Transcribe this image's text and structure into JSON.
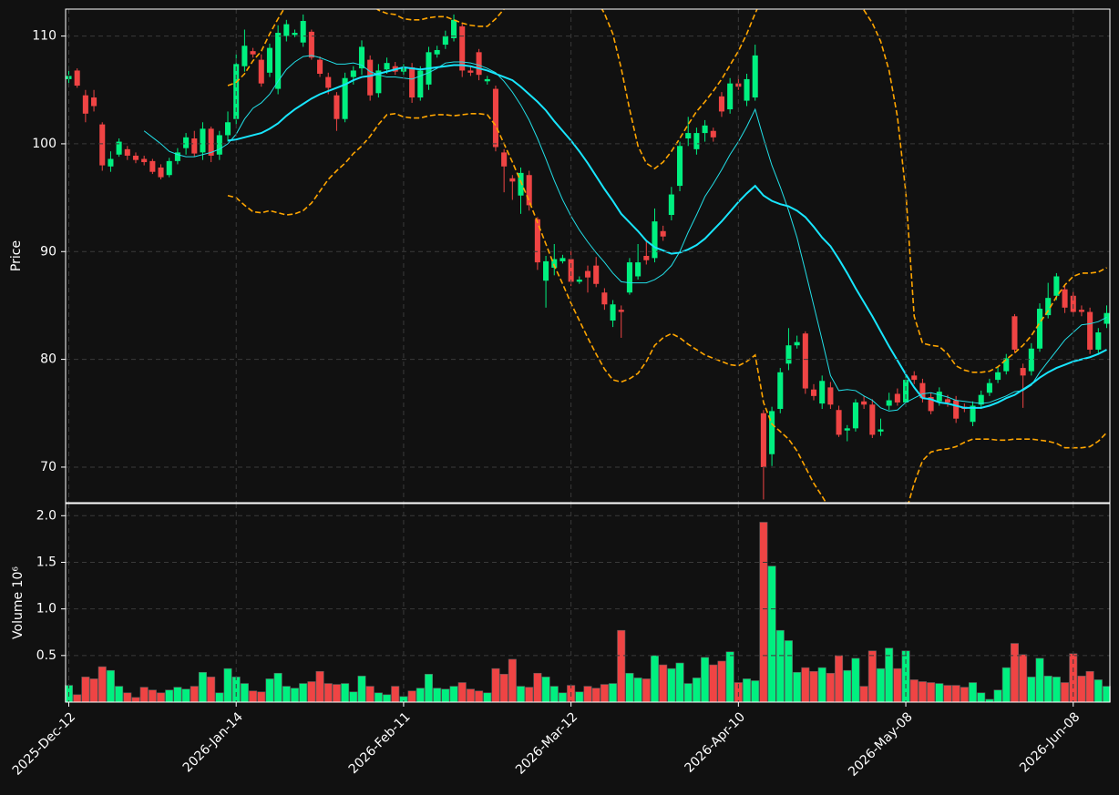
{
  "chart_data": {
    "type": "candlestick",
    "ylabel": "Price",
    "volume_label": "Volume  10⁶",
    "up_color": "#00f080",
    "down_color": "#ef4444",
    "grid": true,
    "ylim": [
      66.7,
      112.5
    ],
    "yticks": [
      70,
      80,
      90,
      100,
      110
    ],
    "volume_ylim": [
      0,
      2.13
    ],
    "volume_yticks": [
      0.5,
      {
        "value": 1,
        "label": "1.0"
      },
      1.5,
      {
        "value": 2,
        "label": "2.0"
      }
    ],
    "categories": [
      "2025-Dec-12",
      null,
      null,
      null,
      null,
      null,
      null,
      null,
      null,
      null,
      null,
      null,
      null,
      null,
      null,
      null,
      null,
      null,
      null,
      null,
      "2026-Jan-14",
      null,
      null,
      null,
      null,
      null,
      null,
      null,
      null,
      null,
      null,
      null,
      null,
      null,
      null,
      null,
      null,
      null,
      null,
      null,
      "2026-Feb-11",
      null,
      null,
      null,
      null,
      null,
      null,
      null,
      null,
      null,
      null,
      null,
      null,
      null,
      null,
      null,
      null,
      null,
      null,
      null,
      "2026-Mar-12",
      null,
      null,
      null,
      null,
      null,
      null,
      null,
      null,
      null,
      null,
      null,
      null,
      null,
      null,
      null,
      null,
      null,
      null,
      null,
      "2026-Apr-10",
      null,
      null,
      null,
      null,
      null,
      null,
      null,
      null,
      null,
      null,
      null,
      null,
      null,
      null,
      null,
      null,
      null,
      null,
      null,
      "2026-May-08",
      null,
      null,
      null,
      null,
      null,
      null,
      null,
      null,
      null,
      null,
      null,
      null,
      null,
      null,
      null,
      null,
      null,
      null,
      null,
      "2026-Jun-08",
      null,
      null,
      null,
      null
    ],
    "open": [
      106.0,
      106.8,
      104.5,
      104.3,
      101.8,
      97.9,
      99.0,
      99.5,
      98.9,
      98.6,
      98.4,
      97.8,
      97.1,
      98.4,
      99.6,
      100.5,
      99.2,
      101.4,
      99.0,
      100.8,
      102.3,
      107.2,
      108.6,
      107.8,
      106.6,
      105.1,
      110.0,
      110.1,
      109.4,
      110.4,
      107.8,
      106.2,
      104.5,
      102.3,
      106.2,
      107.0,
      107.8,
      104.7,
      106.9,
      107.2,
      106.7,
      107.1,
      104.3,
      105.5,
      108.3,
      109.2,
      109.8,
      110.9,
      106.8,
      108.5,
      105.8,
      105.1,
      99.2,
      96.8,
      95.2,
      97.1,
      93.0,
      87.3,
      88.5,
      89.1,
      89.3,
      87.2,
      88.2,
      88.7,
      86.2,
      83.6,
      84.6,
      86.2,
      87.7,
      89.6,
      89.4,
      91.9,
      93.4,
      96.1,
      100.5,
      99.5,
      101.0,
      101.2,
      104.4,
      103.2,
      105.6,
      104.0,
      104.3,
      75.0,
      71.2,
      75.4,
      79.6,
      81.3,
      82.4,
      77.2,
      75.9,
      77.4,
      75.3,
      73.4,
      73.6,
      76.1,
      75.8,
      73.3,
      75.7,
      76.8,
      76.0,
      78.5,
      77.8,
      76.5,
      76.1,
      76.3,
      76.2,
      75.6,
      74.2,
      75.8,
      76.9,
      78.1,
      78.9,
      84.0,
      79.2,
      78.9,
      81.0,
      84.1,
      85.9,
      86.5,
      85.9,
      84.6,
      84.4,
      80.9,
      83.3
    ],
    "high": [
      107.2,
      107.0,
      105.0,
      105.0,
      102.0,
      99.3,
      100.5,
      99.8,
      99.2,
      98.9,
      98.6,
      98.1,
      98.7,
      99.6,
      101.0,
      101.2,
      102.0,
      101.6,
      101.2,
      103.0,
      108.3,
      110.6,
      108.9,
      108.3,
      109.3,
      111.0,
      111.5,
      110.6,
      112.0,
      110.6,
      108.1,
      106.6,
      104.8,
      106.6,
      107.2,
      109.6,
      108.2,
      107.4,
      108.0,
      107.6,
      107.4,
      107.5,
      107.2,
      109.0,
      109.1,
      110.5,
      112.0,
      111.2,
      107.2,
      108.8,
      106.3,
      105.4,
      99.5,
      97.1,
      97.8,
      97.5,
      93.2,
      89.6,
      90.7,
      89.7,
      90.2,
      87.7,
      88.7,
      89.5,
      86.6,
      85.5,
      85.0,
      89.4,
      90.7,
      91.0,
      94.0,
      92.4,
      96.0,
      100.2,
      102.5,
      101.5,
      102.2,
      101.5,
      104.8,
      106.1,
      106.3,
      106.5,
      109.2,
      75.3,
      75.6,
      79.2,
      82.9,
      82.2,
      82.6,
      77.7,
      78.5,
      77.9,
      75.7,
      73.9,
      76.3,
      76.6,
      76.3,
      74.5,
      76.9,
      77.3,
      78.6,
      78.9,
      78.2,
      76.9,
      77.4,
      76.7,
      76.6,
      75.9,
      76.1,
      77.1,
      78.2,
      79.3,
      80.5,
      84.2,
      79.6,
      81.5,
      85.2,
      87.1,
      88.0,
      86.9,
      86.3,
      85.0,
      84.8,
      82.9,
      85.0
    ],
    "low": [
      105.5,
      105.2,
      102.0,
      103.0,
      97.5,
      97.4,
      98.8,
      98.5,
      98.2,
      98.0,
      97.2,
      96.7,
      96.9,
      98.1,
      99.0,
      98.8,
      98.5,
      98.3,
      98.5,
      100.2,
      101.8,
      106.7,
      108.0,
      105.3,
      106.2,
      104.6,
      109.5,
      109.9,
      109.0,
      107.8,
      106.2,
      104.6,
      101.2,
      102.0,
      105.5,
      106.4,
      104.0,
      104.3,
      106.5,
      106.4,
      106.4,
      103.8,
      104.0,
      105.0,
      108.0,
      108.8,
      109.5,
      106.2,
      106.3,
      105.9,
      105.5,
      99.3,
      95.5,
      94.8,
      93.5,
      93.8,
      88.3,
      84.8,
      87.8,
      88.9,
      86.8,
      87.0,
      86.2,
      86.7,
      84.6,
      83.0,
      82.0,
      86.0,
      87.4,
      88.8,
      89.0,
      91.0,
      92.9,
      95.6,
      99.8,
      99.0,
      100.2,
      100.2,
      102.5,
      102.8,
      105.0,
      103.5,
      104.0,
      67.0,
      70.1,
      75.0,
      79.0,
      81.0,
      76.8,
      76.2,
      75.4,
      75.4,
      72.8,
      72.4,
      73.3,
      75.4,
      72.7,
      72.9,
      75.3,
      75.7,
      75.6,
      77.7,
      76.0,
      74.9,
      75.7,
      75.6,
      74.1,
      75.1,
      73.8,
      75.4,
      76.6,
      77.8,
      78.6,
      80.6,
      75.5,
      78.5,
      80.7,
      83.8,
      85.5,
      84.3,
      84.0,
      84.0,
      80.5,
      80.6,
      82.9
    ],
    "close": [
      106.3,
      105.4,
      102.8,
      103.5,
      98.0,
      98.6,
      100.2,
      98.9,
      98.5,
      98.3,
      97.4,
      96.9,
      98.4,
      99.2,
      100.6,
      99.1,
      101.4,
      98.9,
      100.8,
      102.0,
      107.4,
      109.1,
      108.3,
      105.6,
      108.9,
      110.3,
      111.1,
      110.3,
      111.4,
      108.0,
      106.5,
      105.2,
      102.3,
      106.1,
      106.8,
      109.0,
      104.5,
      106.8,
      107.5,
      106.7,
      107.1,
      104.3,
      106.8,
      108.5,
      108.7,
      110.0,
      111.5,
      106.8,
      106.6,
      106.4,
      106.0,
      99.7,
      97.9,
      96.5,
      97.3,
      94.3,
      89.0,
      89.1,
      89.3,
      89.4,
      87.2,
      87.4,
      87.6,
      87.0,
      85.1,
      85.1,
      84.4,
      89.0,
      89.0,
      89.2,
      92.8,
      91.4,
      95.3,
      99.8,
      101.0,
      101.0,
      101.7,
      100.6,
      103.0,
      105.6,
      105.3,
      106.0,
      108.2,
      70.0,
      75.2,
      78.8,
      81.3,
      81.6,
      77.3,
      76.6,
      78.0,
      75.8,
      73.0,
      73.6,
      76.0,
      75.8,
      73.0,
      73.5,
      76.2,
      76.0,
      78.1,
      78.1,
      76.4,
      75.2,
      77.0,
      76.0,
      74.5,
      75.4,
      75.7,
      76.7,
      77.8,
      78.8,
      80.1,
      80.9,
      78.5,
      81.0,
      84.7,
      85.7,
      87.7,
      84.8,
      84.4,
      84.4,
      80.9,
      82.5,
      84.3
    ],
    "volume": [
      0.18,
      0.08,
      0.27,
      0.25,
      0.38,
      0.34,
      0.17,
      0.1,
      0.05,
      0.16,
      0.13,
      0.1,
      0.13,
      0.16,
      0.14,
      0.17,
      0.32,
      0.27,
      0.1,
      0.36,
      0.27,
      0.2,
      0.12,
      0.11,
      0.25,
      0.31,
      0.17,
      0.15,
      0.2,
      0.22,
      0.33,
      0.2,
      0.19,
      0.2,
      0.11,
      0.28,
      0.17,
      0.1,
      0.08,
      0.17,
      0.06,
      0.12,
      0.15,
      0.3,
      0.15,
      0.14,
      0.17,
      0.21,
      0.14,
      0.12,
      0.1,
      0.36,
      0.3,
      0.46,
      0.17,
      0.16,
      0.31,
      0.27,
      0.17,
      0.1,
      0.18,
      0.11,
      0.17,
      0.15,
      0.19,
      0.2,
      0.77,
      0.31,
      0.26,
      0.25,
      0.5,
      0.4,
      0.36,
      0.42,
      0.2,
      0.26,
      0.48,
      0.4,
      0.44,
      0.54,
      0.21,
      0.25,
      0.23,
      1.93,
      1.46,
      0.77,
      0.66,
      0.32,
      0.37,
      0.33,
      0.37,
      0.31,
      0.5,
      0.34,
      0.47,
      0.17,
      0.55,
      0.36,
      0.58,
      0.36,
      0.55,
      0.24,
      0.22,
      0.21,
      0.2,
      0.18,
      0.18,
      0.16,
      0.21,
      0.1,
      0.03,
      0.13,
      0.37,
      0.63,
      0.51,
      0.27,
      0.47,
      0.28,
      0.27,
      0.21,
      0.52,
      0.28,
      0.33,
      0.24,
      0.17
    ],
    "overlays": [
      {
        "color": "#22e0e8",
        "linestyle": "solid",
        "linewidth": 1,
        "values": [
          null,
          null,
          null,
          null,
          null,
          null,
          null,
          null,
          null,
          101.2,
          100.6,
          100,
          99.3,
          99,
          98.8,
          98.8,
          99,
          99.2,
          99.5,
          100,
          100.9,
          102.3,
          103.3,
          103.8,
          104.6,
          105.8,
          106.9,
          107.6,
          108.1,
          108.2,
          108,
          107.7,
          107.4,
          107.4,
          107.5,
          107.3,
          106.7,
          106.4,
          106.2,
          106.2,
          106.1,
          106,
          106.3,
          106.6,
          107,
          107.5,
          107.6,
          107.6,
          107.5,
          107.3,
          107,
          106.6,
          105.8,
          104.8,
          103.6,
          102.2,
          100.5,
          98.6,
          96.6,
          94.8,
          93.3,
          92,
          90.9,
          89.9,
          89,
          88,
          87.2,
          87.1,
          87.1,
          87.1,
          87.4,
          87.9,
          88.7,
          90,
          91.8,
          93.4,
          95.1,
          96.3,
          97.6,
          99,
          100.2,
          101.6,
          103.2,
          100.5,
          98,
          96,
          93.8,
          91.3,
          88.2,
          85,
          81.8,
          78.5,
          77.1,
          77.2,
          77.1,
          76.6,
          76.2,
          75.5,
          75.2,
          75.3,
          76,
          76.4,
          76.8,
          76.9,
          76.7,
          76.5,
          76.2,
          76.1,
          76,
          75.9,
          76,
          76.3,
          76.6,
          77,
          77.1,
          77.6,
          78.8,
          79.8,
          80.8,
          81.8,
          82.5,
          83.2,
          83.3,
          83.5,
          83.9
        ]
      },
      {
        "color": "#18e6ff",
        "linestyle": "solid",
        "linewidth": 2,
        "values": [
          null,
          null,
          null,
          null,
          null,
          null,
          null,
          null,
          null,
          null,
          null,
          null,
          null,
          null,
          null,
          null,
          null,
          null,
          null,
          100.3,
          100.4,
          100.6,
          100.8,
          101,
          101.4,
          101.9,
          102.6,
          103.2,
          103.7,
          104.2,
          104.6,
          104.9,
          105.2,
          105.5,
          105.9,
          106.2,
          106.3,
          106.5,
          106.7,
          106.9,
          107.1,
          107,
          106.9,
          107,
          107.1,
          107.2,
          107.3,
          107.3,
          107.2,
          107,
          106.8,
          106.5,
          106.2,
          105.9,
          105.3,
          104.6,
          103.9,
          103.1,
          102.1,
          101.2,
          100.3,
          99.3,
          98.2,
          97,
          95.8,
          94.7,
          93.5,
          92.7,
          91.9,
          91,
          90.4,
          90.1,
          89.8,
          89.9,
          90.2,
          90.6,
          91.2,
          92,
          92.8,
          93.7,
          94.6,
          95.4,
          96.1,
          95.2,
          94.7,
          94.4,
          94.2,
          93.8,
          93.2,
          92.3,
          91.3,
          90.5,
          89.3,
          88,
          86.6,
          85.3,
          84,
          82.6,
          81.2,
          79.9,
          78.6,
          77.4,
          76.4,
          76.3,
          76,
          75.9,
          75.7,
          75.5,
          75.5,
          75.5,
          75.7,
          76,
          76.4,
          76.7,
          77.2,
          77.7,
          78.3,
          78.8,
          79.2,
          79.5,
          79.8,
          80,
          80.2,
          80.5,
          80.9
        ]
      },
      {
        "color": "#ffa500",
        "linestyle": "dashed",
        "linewidth": 1.6,
        "values": [
          null,
          null,
          null,
          null,
          null,
          null,
          null,
          null,
          null,
          null,
          null,
          null,
          null,
          null,
          null,
          null,
          null,
          null,
          null,
          105.4,
          105.7,
          106.5,
          107.7,
          108.6,
          110.2,
          111.6,
          112.9,
          113.8,
          114.3,
          114.6,
          114.8,
          114.9,
          114.8,
          114.5,
          114.1,
          113.6,
          113,
          112.4,
          112.1,
          112,
          111.6,
          111.5,
          111.5,
          111.7,
          111.8,
          111.8,
          111.5,
          111.2,
          111,
          110.9,
          110.9,
          111.6,
          112.5,
          113.4,
          114.3,
          115,
          115.6,
          116,
          116.2,
          116.3,
          116,
          115.4,
          114.5,
          113.4,
          112.1,
          110.2,
          107,
          103.2,
          99.8,
          98.2,
          97.7,
          98.3,
          99.3,
          100.5,
          101.8,
          103,
          103.9,
          104.9,
          106,
          107.3,
          108.6,
          110.2,
          112.1,
          113.8,
          115,
          116,
          116.8,
          117.3,
          117.6,
          117.6,
          117.4,
          116.8,
          115.9,
          114.7,
          113.4,
          112.4,
          111.2,
          109.5,
          106.8,
          102.5,
          95.5,
          84,
          81.5,
          81.3,
          81.2,
          80.5,
          79.4,
          79,
          78.8,
          78.8,
          78.9,
          79.3,
          80,
          80.6,
          81.3,
          82.2,
          83.4,
          84.5,
          85.8,
          86.9,
          87.7,
          88,
          88,
          88.1,
          88.5
        ]
      },
      {
        "color": "#ffa500",
        "linestyle": "dashed",
        "linewidth": 1.6,
        "values": [
          null,
          null,
          null,
          null,
          null,
          null,
          null,
          null,
          null,
          null,
          null,
          null,
          null,
          null,
          null,
          null,
          null,
          null,
          null,
          95.2,
          95,
          94.3,
          93.7,
          93.6,
          93.8,
          93.6,
          93.4,
          93.5,
          93.8,
          94.5,
          95.6,
          96.7,
          97.5,
          98.2,
          99.1,
          99.8,
          100.7,
          101.8,
          102.7,
          102.8,
          102.5,
          102.4,
          102.4,
          102.6,
          102.7,
          102.7,
          102.6,
          102.7,
          102.8,
          102.8,
          102.7,
          101.7,
          100,
          98.3,
          96.5,
          94.7,
          92.7,
          90.7,
          88.7,
          87,
          85.2,
          83.6,
          82,
          80.5,
          79.1,
          78.1,
          77.9,
          78.2,
          78.7,
          79.8,
          81.3,
          82,
          82.4,
          82,
          81.4,
          80.9,
          80.4,
          80.1,
          79.8,
          79.5,
          79.4,
          79.8,
          80.4,
          76,
          74,
          73.3,
          72.6,
          71.5,
          70,
          68.5,
          67.3,
          66,
          65,
          64,
          63.3,
          62.8,
          62.5,
          62.7,
          63.3,
          64.2,
          65.8,
          68.5,
          70.6,
          71.4,
          71.6,
          71.7,
          71.9,
          72.3,
          72.6,
          72.6,
          72.6,
          72.5,
          72.5,
          72.6,
          72.6,
          72.6,
          72.5,
          72.4,
          72.2,
          71.8,
          71.8,
          71.8,
          71.9,
          72.4,
          73.2
        ]
      }
    ]
  }
}
